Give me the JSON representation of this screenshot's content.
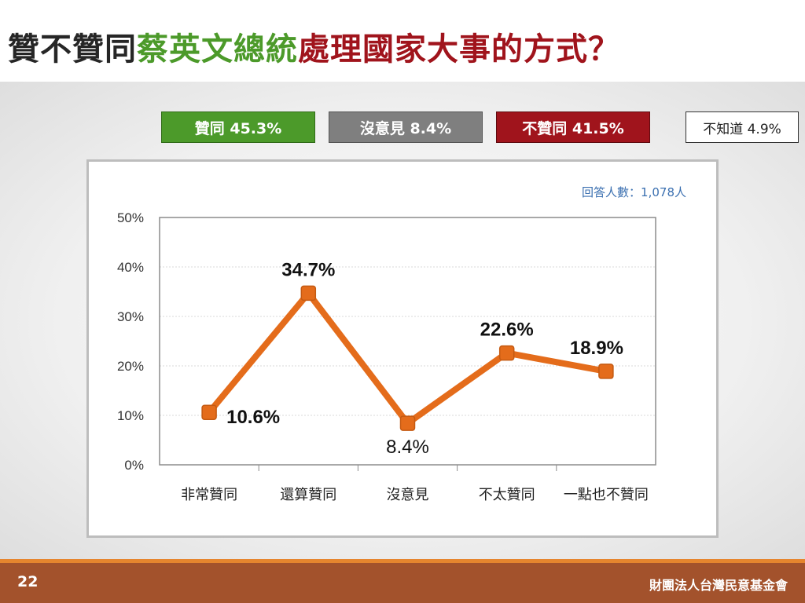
{
  "title": {
    "part1": "贊不贊同",
    "part2": "蔡英文總統",
    "part3": "處理國家大事的方式？"
  },
  "colors": {
    "agree": "#4c9a2a",
    "no_opinion": "#7f7f7f",
    "disagree": "#a0141c",
    "line": "#e46c1b",
    "footer": "#a3522c",
    "footer_accent": "#e6852e"
  },
  "legend": {
    "agree": "贊同 45.3%",
    "no_opinion": "沒意見 8.4%",
    "disagree": "不贊同 41.5%",
    "dont_know": "不知道 4.9%"
  },
  "chart_data": {
    "type": "line",
    "categories": [
      "非常贊同",
      "還算贊同",
      "沒意見",
      "不太贊同",
      "一點也不贊同"
    ],
    "series": [
      {
        "values": [
          10.6,
          34.7,
          8.4,
          22.6,
          18.9
        ]
      }
    ],
    "data_labels": [
      "10.6%",
      "34.7%",
      "8.4%",
      "22.6%",
      "18.9%"
    ],
    "ylim": [
      0,
      50
    ],
    "yticks": [
      "0%",
      "10%",
      "20%",
      "30%",
      "40%",
      "50%"
    ],
    "grid": true,
    "annotation": "回答人數：1,078人"
  },
  "footer": {
    "page": "22",
    "org": "財團法人台灣民意基金會"
  }
}
